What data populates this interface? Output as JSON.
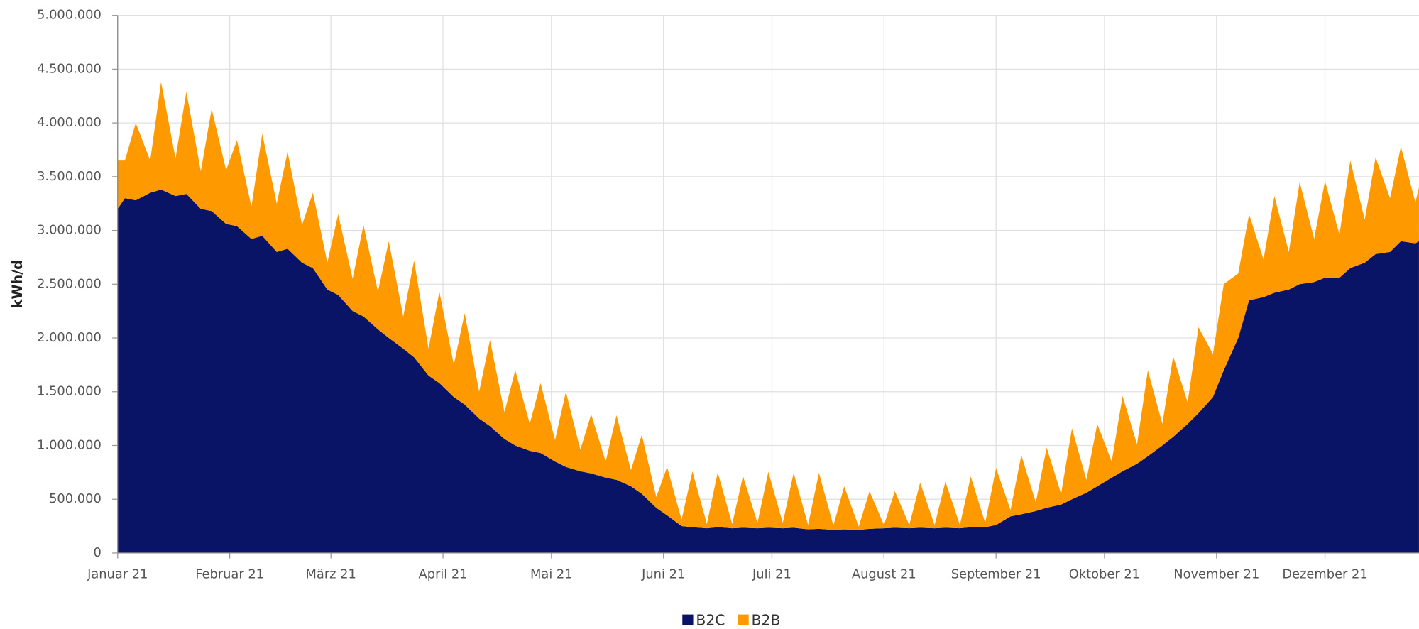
{
  "chart_data": {
    "type": "stacked-area",
    "y_label": "kWh/d",
    "x": [
      0,
      2,
      5,
      9,
      12,
      16,
      19,
      23,
      26,
      30,
      33,
      37,
      40,
      44,
      47,
      51,
      54,
      58,
      61,
      65,
      68,
      72,
      75,
      79,
      82,
      86,
      89,
      93,
      96,
      100,
      103,
      107,
      110,
      114,
      117,
      121,
      124,
      128,
      131,
      135,
      138,
      142,
      145,
      149,
      152,
      156,
      159,
      163,
      166,
      170,
      173,
      177,
      180,
      184,
      187,
      191,
      194,
      198,
      201,
      205,
      208,
      212,
      215,
      219,
      222,
      226,
      229,
      233,
      236,
      240,
      243,
      247,
      250,
      254,
      257,
      261,
      264,
      268,
      271,
      275,
      278,
      282,
      285,
      289,
      292,
      296,
      299,
      303,
      306,
      310,
      313,
      317,
      320,
      324,
      327,
      331,
      334,
      338,
      341,
      345,
      348,
      352,
      355,
      359,
      360
    ],
    "series": [
      {
        "name": "B2C",
        "color": "#0a1466",
        "values": [
          3200000,
          3300000,
          3280000,
          3350000,
          3380000,
          3320000,
          3340000,
          3200000,
          3180000,
          3060000,
          3040000,
          2920000,
          2950000,
          2800000,
          2830000,
          2700000,
          2650000,
          2450000,
          2400000,
          2250000,
          2200000,
          2080000,
          2000000,
          1900000,
          1820000,
          1650000,
          1580000,
          1450000,
          1380000,
          1250000,
          1180000,
          1060000,
          1000000,
          950000,
          930000,
          850000,
          800000,
          760000,
          740000,
          700000,
          680000,
          620000,
          550000,
          420000,
          350000,
          250000,
          240000,
          230000,
          240000,
          230000,
          235000,
          230000,
          235000,
          230000,
          235000,
          220000,
          225000,
          215000,
          220000,
          215000,
          225000,
          230000,
          235000,
          230000,
          235000,
          230000,
          235000,
          230000,
          240000,
          240000,
          260000,
          340000,
          360000,
          390000,
          420000,
          450000,
          500000,
          560000,
          620000,
          700000,
          760000,
          830000,
          900000,
          1000000,
          1080000,
          1200000,
          1300000,
          1450000,
          1700000,
          2000000,
          2350000,
          2380000,
          2420000,
          2450000,
          2500000,
          2520000,
          2560000,
          2560000,
          2650000,
          2700000,
          2780000,
          2800000,
          2900000,
          2880000,
          2900000
        ]
      },
      {
        "name": "B2B",
        "color": "#ff9900",
        "values": [
          450000,
          350000,
          720000,
          300000,
          1000000,
          350000,
          950000,
          350000,
          950000,
          500000,
          800000,
          300000,
          950000,
          450000,
          900000,
          350000,
          700000,
          250000,
          750000,
          300000,
          850000,
          350000,
          900000,
          300000,
          900000,
          250000,
          850000,
          300000,
          850000,
          250000,
          800000,
          250000,
          700000,
          250000,
          650000,
          200000,
          700000,
          200000,
          550000,
          150000,
          600000,
          150000,
          550000,
          100000,
          450000,
          60000,
          520000,
          40000,
          510000,
          40000,
          480000,
          50000,
          520000,
          50000,
          510000,
          40000,
          520000,
          40000,
          400000,
          30000,
          350000,
          30000,
          340000,
          30000,
          420000,
          30000,
          430000,
          30000,
          470000,
          40000,
          530000,
          60000,
          550000,
          80000,
          560000,
          100000,
          660000,
          120000,
          580000,
          150000,
          700000,
          180000,
          800000,
          200000,
          750000,
          200000,
          800000,
          400000,
          800000,
          600000,
          800000,
          350000,
          900000,
          350000,
          950000,
          400000,
          900000,
          400000,
          1000000,
          400000,
          900000,
          500000,
          880000,
          380000,
          500000
        ]
      }
    ],
    "xlim": [
      0,
      360
    ],
    "xticks": [
      {
        "value": 0,
        "label": "Januar 21"
      },
      {
        "value": 31,
        "label": "Februar 21"
      },
      {
        "value": 59,
        "label": "März 21"
      },
      {
        "value": 90,
        "label": "April 21"
      },
      {
        "value": 120,
        "label": "Mai 21"
      },
      {
        "value": 151,
        "label": "Juni 21"
      },
      {
        "value": 181,
        "label": "Juli 21"
      },
      {
        "value": 212,
        "label": "August 21"
      },
      {
        "value": 243,
        "label": "September 21"
      },
      {
        "value": 273,
        "label": "Oktober 21"
      },
      {
        "value": 304,
        "label": "November 21"
      },
      {
        "value": 334,
        "label": "Dezember 21"
      }
    ],
    "ylim": [
      0,
      5000000
    ],
    "yticks": [
      0,
      {
        "value": 500000,
        "label": "500.000"
      },
      {
        "value": 1000000,
        "label": "1.000.000"
      },
      {
        "value": 1500000,
        "label": "1.500.000"
      },
      {
        "value": 2000000,
        "label": "2.000.000"
      },
      {
        "value": 2500000,
        "label": "2.500.000"
      },
      {
        "value": 3000000,
        "label": "3.000.000"
      },
      {
        "value": 3500000,
        "label": "3.500.000"
      },
      {
        "value": 4000000,
        "label": "4.000.000"
      },
      {
        "value": 4500000,
        "label": "4.500.000"
      },
      {
        "value": 5000000,
        "label": "5.000.000"
      }
    ],
    "grid": true,
    "legend": "bottom"
  }
}
